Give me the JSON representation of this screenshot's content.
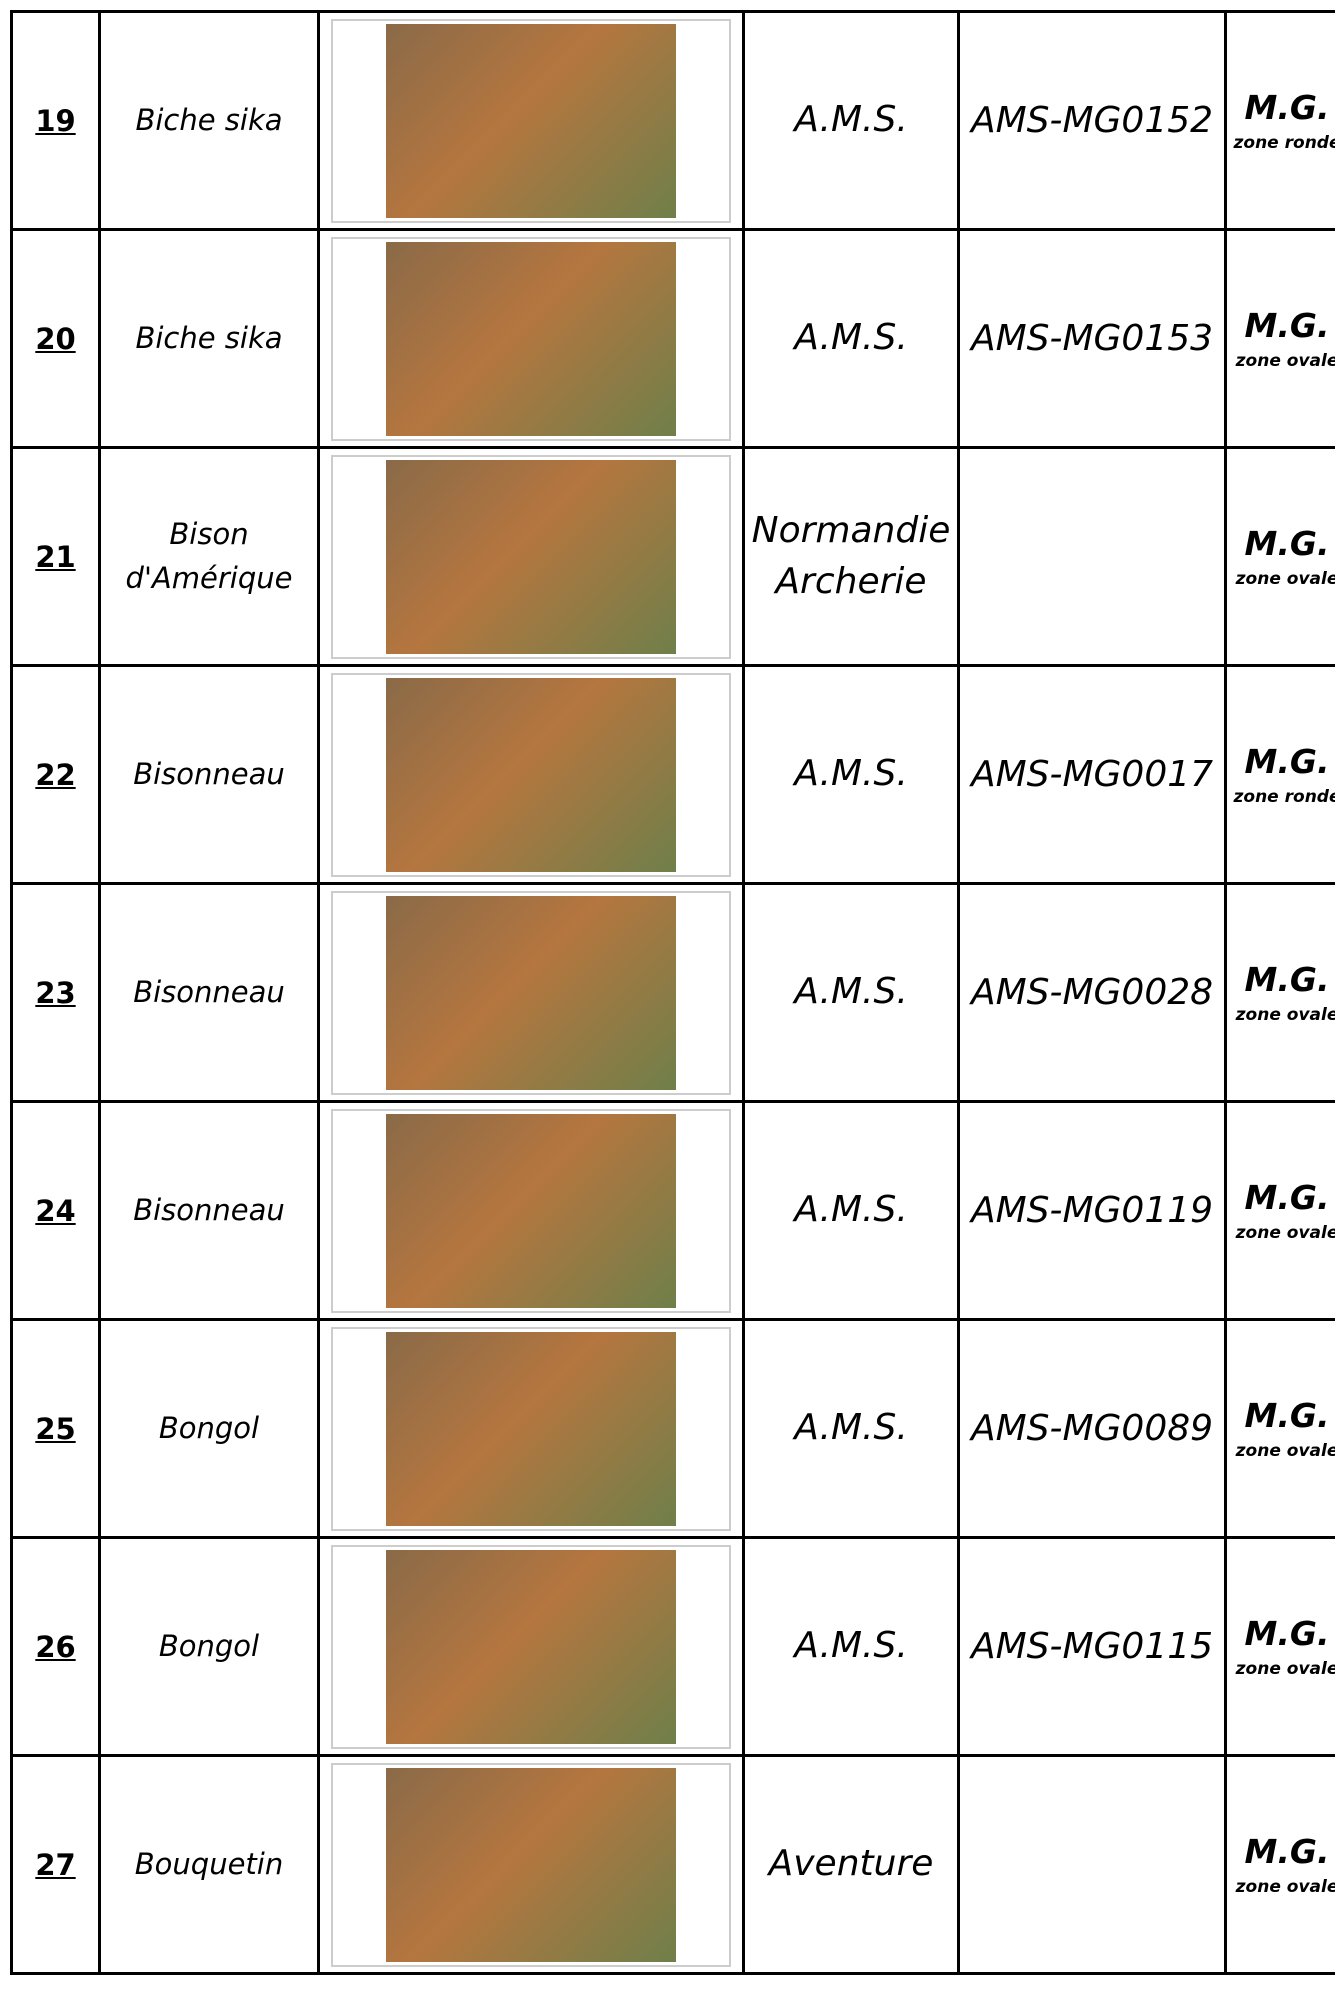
{
  "table": {
    "rows": [
      {
        "number": "19",
        "name": "Biche sika",
        "maker": "A.M.S.",
        "ref": "AMS-MG0152",
        "zone": "M.G.",
        "zone_type": "zone ronde"
      },
      {
        "number": "20",
        "name": "Biche sika",
        "maker": "A.M.S.",
        "ref": "AMS-MG0153",
        "zone": "M.G.",
        "zone_type": "zone ovale"
      },
      {
        "number": "21",
        "name": "Bison d'Amérique",
        "maker": "Normandie Archerie",
        "zone": "M.G.",
        "zone_type": "zone ovale"
      },
      {
        "number": "22",
        "name": "Bisonneau",
        "maker": "A.M.S.",
        "ref": "AMS-MG0017",
        "zone": "M.G.",
        "zone_type": "zone ronde"
      },
      {
        "number": "23",
        "name": "Bisonneau",
        "maker": "A.M.S.",
        "ref": "AMS-MG0028",
        "zone": "M.G.",
        "zone_type": "zone ovale"
      },
      {
        "number": "24",
        "name": "Bisonneau",
        "maker": "A.M.S.",
        "ref": "AMS-MG0119",
        "zone": "M.G.",
        "zone_type": "zone ovale"
      },
      {
        "number": "25",
        "name": "Bongol",
        "maker": "A.M.S.",
        "ref": "AMS-MG0089",
        "zone": "M.G.",
        "zone_type": "zone ovale"
      },
      {
        "number": "26",
        "name": "Bongol",
        "maker": "A.M.S.",
        "ref": "AMS-MG0115",
        "zone": "M.G.",
        "zone_type": "zone ovale"
      },
      {
        "number": "27",
        "name": "Bouquetin",
        "maker": "Aventure",
        "zone": "M.G.",
        "zone_type": "zone ovale"
      }
    ]
  }
}
